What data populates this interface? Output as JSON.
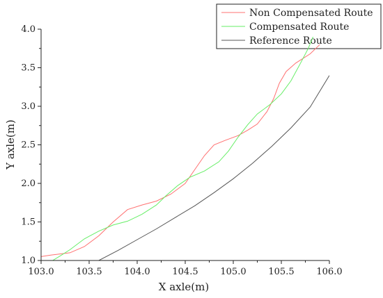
{
  "chart_data": {
    "type": "line",
    "xlabel": "X axle(m)",
    "ylabel": "Y axle(m)",
    "xlim": [
      103.0,
      106.0
    ],
    "ylim": [
      1.0,
      4.0
    ],
    "x_ticks": [
      "103.0",
      "103.5",
      "104.0",
      "104.5",
      "105.0",
      "105.5",
      "106.0"
    ],
    "y_ticks": [
      "1.0",
      "1.5",
      "2.0",
      "2.5",
      "3.0",
      "3.5",
      "4.0"
    ],
    "legend_position": "top-right",
    "grid": false,
    "series": [
      {
        "name": "Non Compensated Route",
        "color": "#ff7070",
        "points": [
          [
            103.0,
            1.05
          ],
          [
            103.1,
            1.07
          ],
          [
            103.3,
            1.1
          ],
          [
            103.45,
            1.18
          ],
          [
            103.6,
            1.32
          ],
          [
            103.75,
            1.5
          ],
          [
            103.9,
            1.66
          ],
          [
            104.05,
            1.72
          ],
          [
            104.2,
            1.77
          ],
          [
            104.35,
            1.86
          ],
          [
            104.5,
            2.0
          ],
          [
            104.6,
            2.18
          ],
          [
            104.7,
            2.36
          ],
          [
            104.8,
            2.5
          ],
          [
            104.92,
            2.56
          ],
          [
            105.05,
            2.62
          ],
          [
            105.15,
            2.69
          ],
          [
            105.25,
            2.77
          ],
          [
            105.35,
            2.93
          ],
          [
            105.42,
            3.1
          ],
          [
            105.48,
            3.3
          ],
          [
            105.55,
            3.45
          ],
          [
            105.65,
            3.56
          ],
          [
            105.8,
            3.68
          ],
          [
            105.9,
            3.8
          ]
        ]
      },
      {
        "name": "Compensated Route",
        "color": "#66ee66",
        "points": [
          [
            103.12,
            1.0
          ],
          [
            103.2,
            1.06
          ],
          [
            103.3,
            1.14
          ],
          [
            103.45,
            1.28
          ],
          [
            103.6,
            1.38
          ],
          [
            103.75,
            1.46
          ],
          [
            103.9,
            1.51
          ],
          [
            104.05,
            1.6
          ],
          [
            104.2,
            1.72
          ],
          [
            104.3,
            1.84
          ],
          [
            104.42,
            1.97
          ],
          [
            104.55,
            2.08
          ],
          [
            104.7,
            2.16
          ],
          [
            104.85,
            2.28
          ],
          [
            104.95,
            2.42
          ],
          [
            105.05,
            2.6
          ],
          [
            105.15,
            2.76
          ],
          [
            105.25,
            2.9
          ],
          [
            105.38,
            3.02
          ],
          [
            105.5,
            3.16
          ],
          [
            105.6,
            3.33
          ],
          [
            105.7,
            3.56
          ],
          [
            105.78,
            3.75
          ],
          [
            105.83,
            3.9
          ]
        ]
      },
      {
        "name": "Reference Route",
        "color": "#555555",
        "points": [
          [
            103.6,
            1.0
          ],
          [
            103.8,
            1.13
          ],
          [
            104.0,
            1.27
          ],
          [
            104.2,
            1.41
          ],
          [
            104.4,
            1.56
          ],
          [
            104.6,
            1.71
          ],
          [
            104.8,
            1.88
          ],
          [
            105.0,
            2.06
          ],
          [
            105.2,
            2.26
          ],
          [
            105.4,
            2.48
          ],
          [
            105.6,
            2.72
          ],
          [
            105.8,
            2.99
          ],
          [
            106.0,
            3.4
          ]
        ]
      }
    ]
  }
}
